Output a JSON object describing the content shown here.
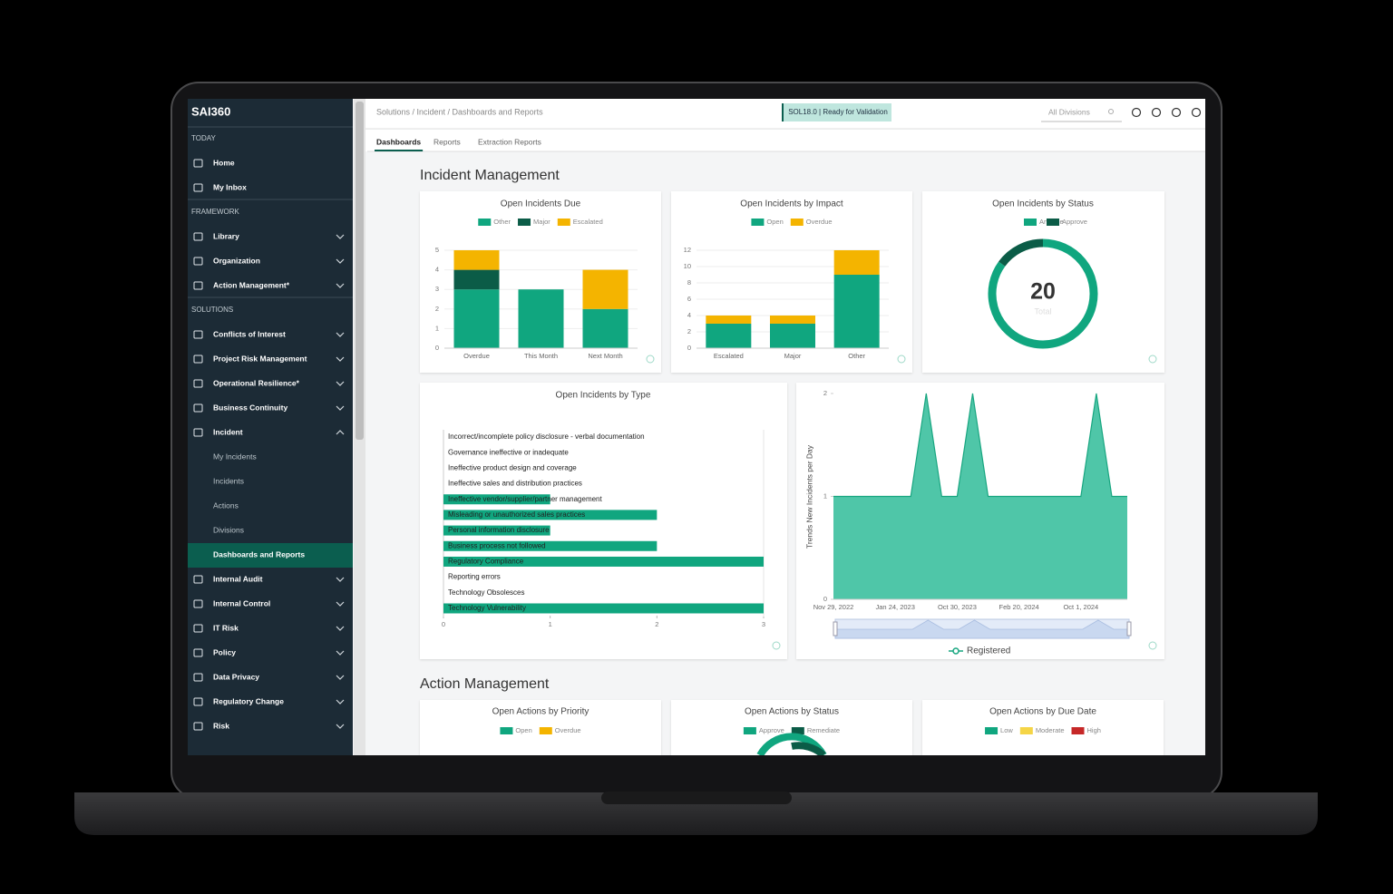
{
  "sidebar": {
    "logo": "SAI360",
    "sections": [
      {
        "heading": "TODAY",
        "items": [
          {
            "label": "Home"
          },
          {
            "label": "My Inbox"
          }
        ]
      },
      {
        "heading": "FRAMEWORK",
        "items": [
          {
            "label": "Library"
          },
          {
            "label": "Organization"
          },
          {
            "label": "Action Management*"
          }
        ]
      },
      {
        "heading": "SOLUTIONS",
        "items": [
          {
            "label": "Conflicts of Interest"
          },
          {
            "label": "Project Risk Management"
          },
          {
            "label": "Operational Resilience*"
          },
          {
            "label": "Business Continuity"
          },
          {
            "label": "Incident",
            "children": [
              {
                "label": "My Incidents"
              },
              {
                "label": "Incidents"
              },
              {
                "label": "Actions"
              },
              {
                "label": "Divisions"
              },
              {
                "label": "Dashboards and Reports",
                "active": true
              }
            ]
          },
          {
            "label": "Internal Audit"
          },
          {
            "label": "Internal Control"
          },
          {
            "label": "IT Risk"
          },
          {
            "label": "Policy"
          },
          {
            "label": "Data Privacy"
          },
          {
            "label": "Regulatory Change"
          },
          {
            "label": "Risk"
          }
        ]
      }
    ]
  },
  "header": {
    "breadcrumb": "Solutions / Incident / Dashboards and Reports",
    "badge": "SOL18.0 | Ready for Validation",
    "search": "All Divisions"
  },
  "tabs": [
    {
      "label": "Dashboards",
      "active": true
    },
    {
      "label": "Reports"
    },
    {
      "label": "Extraction Reports"
    }
  ],
  "sections": {
    "incident": "Incident Management",
    "action": "Action Management"
  },
  "chart_data": [
    {
      "type": "bar",
      "title": "Open Incidents Due",
      "categories": [
        "Overdue",
        "This Month",
        "Next Month"
      ],
      "series": [
        {
          "name": "Other",
          "color": "#10a67f",
          "values": [
            3,
            3,
            2
          ]
        },
        {
          "name": "Major",
          "color": "#0b5c47",
          "values": [
            1,
            0,
            0
          ]
        },
        {
          "name": "Escalated",
          "color": "#f4b400",
          "values": [
            1,
            0,
            2
          ]
        }
      ],
      "ylim": [
        0,
        5
      ],
      "yticks": [
        0,
        1,
        2,
        3,
        4,
        5
      ],
      "grid": true
    },
    {
      "type": "bar",
      "title": "Open Incidents by Impact",
      "categories": [
        "Escalated",
        "Major",
        "Other"
      ],
      "series": [
        {
          "name": "Open",
          "color": "#10a67f",
          "values": [
            3,
            3,
            9
          ]
        },
        {
          "name": "Overdue",
          "color": "#f4b400",
          "values": [
            1,
            1,
            3
          ]
        }
      ],
      "ylim": [
        0,
        12
      ],
      "yticks": [
        0,
        2,
        4,
        6,
        8,
        10,
        12
      ],
      "grid": true
    },
    {
      "type": "donut",
      "title": "Open Incidents by Status",
      "categories": [
        "Analyze",
        "Approve"
      ],
      "values": [
        17,
        3
      ],
      "colors": [
        "#10a67f",
        "#0b5c47"
      ],
      "total": 20,
      "total_label": "Total"
    },
    {
      "type": "hbar",
      "title": "Open Incidents by Type",
      "categories": [
        "Incorrect/incomplete policy disclosure - verbal documentation",
        "Governance ineffective or inadequate",
        "Ineffective product design and coverage",
        "Ineffective sales and distribution practices",
        "Ineffective vendor/supplier/partner management",
        "Misleading or unauthorized sales practices",
        "Personal information disclosure",
        "Business process not followed",
        "Regulatory Compliance",
        "Reporting errors",
        "Technology Obsolesces",
        "Technology Vulnerability"
      ],
      "values": [
        0,
        0,
        0,
        0,
        1,
        2,
        1,
        2,
        3,
        0,
        0,
        3
      ],
      "color": "#10a67f",
      "xlim": [
        0,
        3
      ],
      "xticks": [
        0,
        1,
        2,
        3
      ]
    },
    {
      "type": "area",
      "ylabel": "Trends New Incidents per Day",
      "categories": [
        "Nov 29, 2022",
        null,
        null,
        null,
        "Jan 24, 2023",
        null,
        null,
        null,
        "Oct 30, 2023",
        null,
        null,
        null,
        "Feb 20, 2024",
        null,
        null,
        null,
        "Oct 1, 2024",
        null,
        null,
        null
      ],
      "series": [
        {
          "name": "Registered",
          "color": "#18a680",
          "values": [
            1,
            1,
            1,
            1,
            1,
            1,
            2,
            1,
            1,
            2,
            1,
            1,
            1,
            1,
            1,
            1,
            1,
            2,
            1,
            1
          ]
        }
      ],
      "ylim": [
        0,
        2
      ],
      "yticks": [
        0,
        1,
        2
      ]
    }
  ],
  "action_cards": [
    {
      "title": "Open Actions by Priority",
      "legend": [
        {
          "name": "Open",
          "color": "#10a67f"
        },
        {
          "name": "Overdue",
          "color": "#f4b400"
        }
      ]
    },
    {
      "title": "Open Actions by Status",
      "legend": [
        {
          "name": "Approve",
          "color": "#10a67f"
        },
        {
          "name": "Remediate",
          "color": "#0b5c47"
        }
      ]
    },
    {
      "title": "Open Actions by Due Date",
      "legend": [
        {
          "name": "Low",
          "color": "#10a67f"
        },
        {
          "name": "Moderate",
          "color": "#f5d547"
        },
        {
          "name": "High",
          "color": "#c62828"
        }
      ]
    }
  ]
}
